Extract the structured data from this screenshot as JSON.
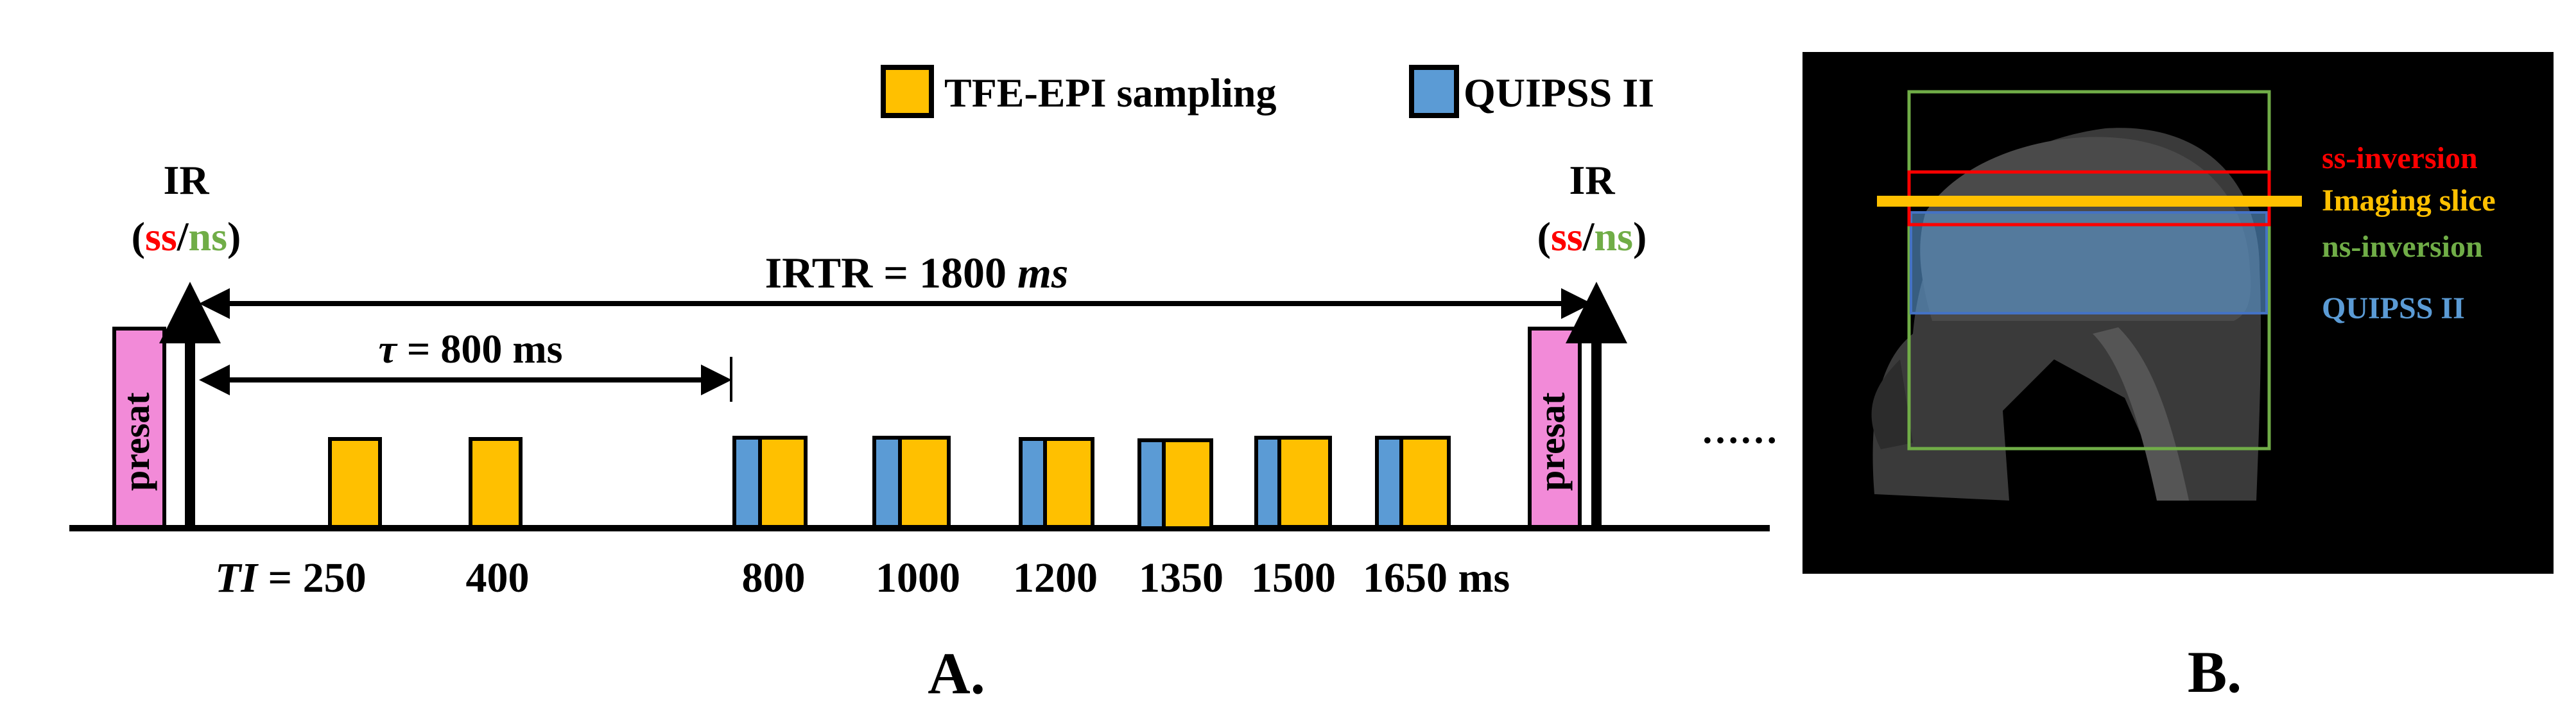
{
  "panel_a": {
    "legend": [
      {
        "label": "TFE-EPI sampling",
        "color": "#FFC000"
      },
      {
        "label": "QUIPSS II",
        "color": "#5B9BD5"
      }
    ],
    "ir_label": "IR",
    "ir_paren_open": "(",
    "ir_ss": "ss",
    "ir_slash": "/",
    "ir_ns": "ns",
    "ir_paren_close": ")",
    "irtr_label": "IRTR = 1800 ",
    "irtr_unit": "ms",
    "tau_symbol": "τ",
    "tau_label": " = 800 ms",
    "presat_label": "presat",
    "ti_prefix": "TI",
    "ti_eq": " = 250",
    "ti_values": [
      "400",
      "800",
      "1000",
      "1200",
      "1350",
      "1500",
      "1650 ms"
    ],
    "continuation": "……",
    "panel_label": "A.",
    "colors": {
      "presat": "#F28AD8",
      "ss": "#FF0000",
      "ns": "#70AD47"
    }
  },
  "panel_b": {
    "labels": [
      {
        "text": "ss-inversion",
        "color": "#FF0000"
      },
      {
        "text": "Imaging slice",
        "color": "#FFC000"
      },
      {
        "text": "ns-inversion",
        "color": "#70AD47"
      },
      {
        "text": "QUIPSS II",
        "color": "#5B9BD5"
      }
    ],
    "panel_label": "B."
  }
}
